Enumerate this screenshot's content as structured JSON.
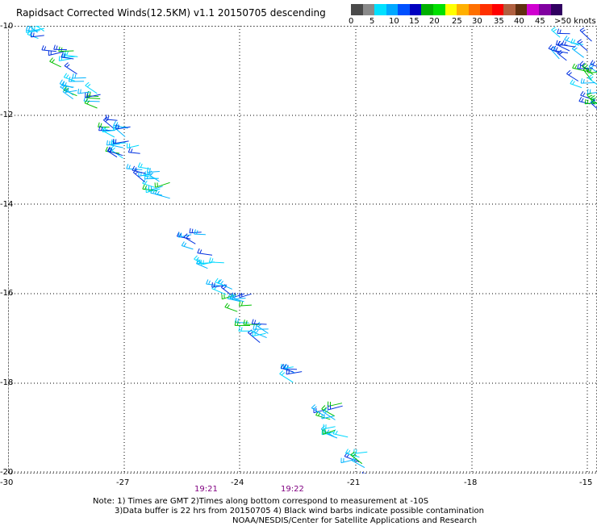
{
  "title": "Rapidsact Corrected Winds(12.5KM) v1.1 20150705 descending",
  "colorbar": {
    "colors": [
      "#4a4a4a",
      "#8a8a8a",
      "#00e0ff",
      "#00a8ff",
      "#0050ff",
      "#0000c0",
      "#00b000",
      "#00e000",
      "#ffff00",
      "#ffb000",
      "#ff7000",
      "#ff3000",
      "#ff0000",
      "#b06040",
      "#603010",
      "#d000d0",
      "#8000a0",
      "#300060"
    ],
    "labels": [
      "0",
      "5",
      "10",
      "15",
      "20",
      "25",
      "30",
      "35",
      "40",
      "45",
      ">50 knots"
    ]
  },
  "map": {
    "lat_ticks": [
      "-10",
      "-12",
      "-14",
      "-16",
      "-18",
      "-20"
    ],
    "lon_ticks": [
      "-30",
      "-27",
      "-24",
      "-21",
      "-18",
      "-15"
    ],
    "times": [
      "19:21",
      "19:22"
    ],
    "wind_colors": {
      "cyan": "#00b4ff",
      "blue": "#0030e0",
      "green": "#00c000",
      "lightcyan": "#00d8ff"
    }
  },
  "note": {
    "line1": "Note: 1) Times are GMT 2)Times along bottom correspond to measurement at -10S",
    "line2": "3)Data buffer is 22 hrs from 20150705 4) Black wind barbs indicate possible contamination",
    "line3": "NOAA/NESDIS/Center for Satellite Applications and Research"
  }
}
